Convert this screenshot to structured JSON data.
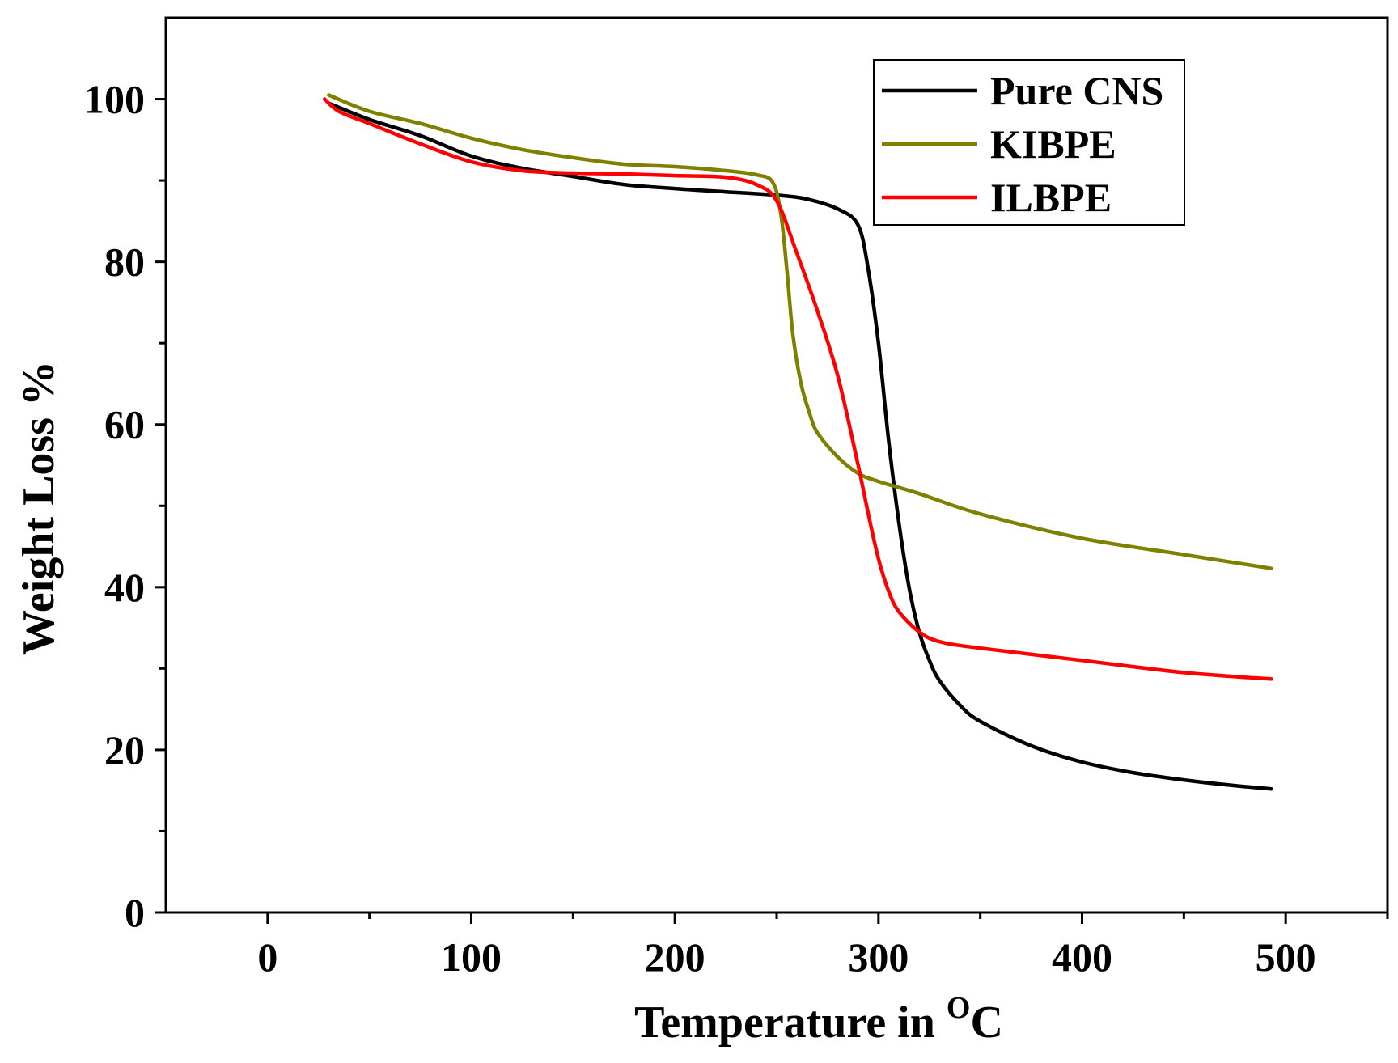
{
  "chart_data": {
    "type": "line",
    "title": "",
    "xlabel": "Temperature in ",
    "xlabel_superscript": "O",
    "xlabel_suffix": "C",
    "ylabel": "Weight Loss %",
    "xlim": [
      -50,
      550
    ],
    "ylim": [
      0,
      110
    ],
    "x_ticks": [
      0,
      100,
      200,
      300,
      400,
      500
    ],
    "y_ticks": [
      0,
      20,
      40,
      60,
      80,
      100
    ],
    "legend_position": "top-right",
    "series": [
      {
        "name": "Pure CNS",
        "color": "#000000",
        "x": [
          30,
          50,
          75,
          100,
          125,
          150,
          175,
          200,
          225,
          250,
          265,
          280,
          290,
          295,
          300,
          305,
          310,
          315,
          320,
          325,
          330,
          340,
          350,
          375,
          400,
          425,
          450,
          475,
          493
        ],
        "y": [
          99.5,
          97.5,
          95.5,
          93,
          91.5,
          90.5,
          89.5,
          89,
          88.6,
          88.2,
          87.7,
          86.5,
          84.5,
          79,
          70,
          58,
          48,
          40,
          34.5,
          31,
          28.5,
          25.5,
          23.5,
          20.5,
          18.5,
          17.2,
          16.3,
          15.6,
          15.2
        ]
      },
      {
        "name": "KIBPE",
        "color": "#808000",
        "x": [
          30,
          50,
          75,
          100,
          125,
          150,
          175,
          200,
          225,
          240,
          248,
          252,
          255,
          258,
          262,
          266,
          270,
          280,
          290,
          300,
          320,
          350,
          400,
          450,
          493
        ],
        "y": [
          100.5,
          98.5,
          97,
          95.2,
          93.8,
          92.8,
          92,
          91.7,
          91.2,
          90.7,
          89.8,
          86,
          79,
          71,
          65,
          61.5,
          59,
          56,
          54,
          53,
          51.5,
          49,
          46,
          44,
          42.3
        ]
      },
      {
        "name": "ILBPE",
        "color": "#ff0000",
        "x": [
          28,
          35,
          50,
          75,
          100,
          125,
          150,
          175,
          200,
          225,
          240,
          250,
          260,
          270,
          280,
          290,
          295,
          300,
          305,
          310,
          320,
          330,
          350,
          400,
          450,
          493
        ],
        "y": [
          100,
          98.5,
          97,
          94.5,
          92.3,
          91.2,
          90.9,
          90.8,
          90.6,
          90.4,
          89.5,
          87.5,
          81,
          74,
          66,
          55,
          49,
          43.5,
          39.5,
          37,
          34.5,
          33.3,
          32.5,
          31,
          29.5,
          28.7
        ]
      }
    ]
  }
}
